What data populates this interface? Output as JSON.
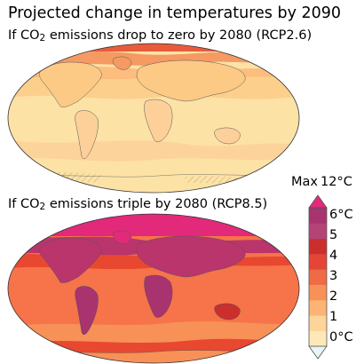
{
  "title": "Projected change in temperatures by 2090",
  "scenarios": [
    {
      "pre": "If CO",
      "sub": "2",
      "post": " emissions drop to zero by 2080 (RCP2.6)",
      "dominant_colors": [
        "#fde2a6",
        "#fdca86",
        "#f59a63",
        "#e85c3c"
      ]
    },
    {
      "pre": "If CO",
      "sub": "2",
      "post": " emissions triple by 2080 (RCP8.5)",
      "dominant_colors": [
        "#f7734a",
        "#e8482f",
        "#b9356c",
        "#e3297a"
      ]
    }
  ],
  "colorbar": {
    "max_word": "Max",
    "max_value": "12°C",
    "colors": [
      "#e8f4f8",
      "#fde8b8",
      "#fdd499",
      "#fbb476",
      "#f79157",
      "#ef6b45",
      "#e34636",
      "#ca2f2e",
      "#b44477",
      "#a8336e",
      "#e3297a"
    ],
    "tick_labels": [
      "6°C",
      "5",
      "4",
      "3",
      "2",
      "1",
      "0°C"
    ]
  }
}
